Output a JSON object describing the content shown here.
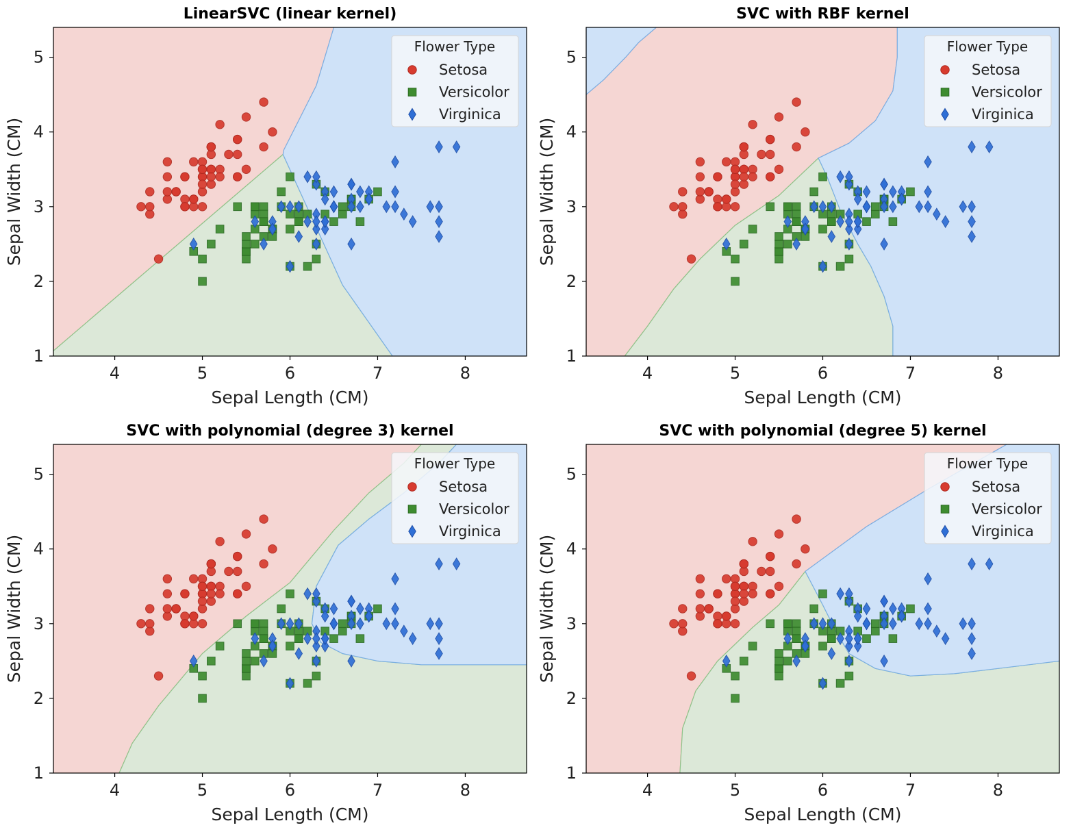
{
  "chart_data": [
    {
      "type": "scatter",
      "title": "LinearSVC (linear kernel)",
      "xlabel": "Sepal Length (CM)",
      "ylabel": "Sepal Width (CM)",
      "xlim": [
        3.3,
        8.7
      ],
      "ylim": [
        1.0,
        5.4
      ],
      "xticks": [
        4,
        5,
        6,
        7,
        8
      ],
      "yticks": [
        1,
        2,
        3,
        4,
        5
      ],
      "legend_title": "Flower Type",
      "legend_position": "top-right",
      "decision_regions": {
        "setosa": [
          [
            3.3,
            1.07
          ],
          [
            5.92,
            3.7
          ],
          [
            5.93,
            3.76
          ],
          [
            6.3,
            4.62
          ],
          [
            6.5,
            5.4
          ],
          [
            3.3,
            5.4
          ]
        ],
        "versicolor": [
          [
            3.3,
            1.0
          ],
          [
            7.17,
            1.0
          ],
          [
            6.6,
            1.95
          ],
          [
            5.92,
            3.7
          ],
          [
            3.3,
            1.07
          ]
        ],
        "virginica": [
          [
            7.17,
            1.0
          ],
          [
            8.7,
            1.0
          ],
          [
            8.7,
            5.4
          ],
          [
            6.5,
            5.4
          ],
          [
            6.3,
            4.62
          ],
          [
            5.93,
            3.76
          ],
          [
            5.92,
            3.7
          ],
          [
            6.6,
            1.95
          ]
        ]
      }
    },
    {
      "type": "scatter",
      "title": "SVC with RBF kernel",
      "xlabel": "Sepal Length (CM)",
      "ylabel": "Sepal Width (CM)",
      "xlim": [
        3.3,
        8.7
      ],
      "ylim": [
        1.0,
        5.4
      ],
      "xticks": [
        4,
        5,
        6,
        7,
        8
      ],
      "yticks": [
        1,
        2,
        3,
        4,
        5
      ],
      "legend_title": "Flower Type",
      "legend_position": "top-right",
      "decision_regions": {
        "virginica_corner": [
          [
            3.3,
            4.5
          ],
          [
            3.5,
            4.7
          ],
          [
            3.75,
            5.0
          ],
          [
            3.9,
            5.2
          ],
          [
            4.1,
            5.4
          ],
          [
            3.3,
            5.4
          ]
        ],
        "setosa": [
          [
            3.3,
            1.0
          ],
          [
            3.74,
            1.0
          ],
          [
            4.0,
            1.4
          ],
          [
            4.3,
            1.9
          ],
          [
            4.6,
            2.3
          ],
          [
            5.0,
            2.75
          ],
          [
            5.5,
            3.15
          ],
          [
            5.95,
            3.65
          ],
          [
            6.3,
            3.85
          ],
          [
            6.6,
            4.15
          ],
          [
            6.8,
            4.55
          ],
          [
            6.85,
            5.0
          ],
          [
            6.85,
            5.4
          ],
          [
            4.1,
            5.4
          ],
          [
            3.9,
            5.2
          ],
          [
            3.75,
            5.0
          ],
          [
            3.5,
            4.7
          ],
          [
            3.3,
            4.5
          ]
        ],
        "versicolor": [
          [
            3.74,
            1.0
          ],
          [
            6.8,
            1.0
          ],
          [
            6.8,
            1.4
          ],
          [
            6.7,
            1.8
          ],
          [
            6.55,
            2.2
          ],
          [
            6.4,
            2.5
          ],
          [
            6.2,
            2.95
          ],
          [
            6.05,
            3.4
          ],
          [
            5.95,
            3.65
          ],
          [
            5.5,
            3.15
          ],
          [
            5.0,
            2.75
          ],
          [
            4.6,
            2.3
          ],
          [
            4.3,
            1.9
          ],
          [
            4.0,
            1.4
          ]
        ],
        "virginica": [
          [
            6.8,
            1.0
          ],
          [
            8.7,
            1.0
          ],
          [
            8.7,
            5.4
          ],
          [
            6.85,
            5.4
          ],
          [
            6.85,
            5.0
          ],
          [
            6.8,
            4.55
          ],
          [
            6.6,
            4.15
          ],
          [
            6.3,
            3.85
          ],
          [
            5.95,
            3.65
          ],
          [
            6.05,
            3.4
          ],
          [
            6.2,
            2.95
          ],
          [
            6.4,
            2.5
          ],
          [
            6.55,
            2.2
          ],
          [
            6.7,
            1.8
          ],
          [
            6.8,
            1.4
          ]
        ]
      }
    },
    {
      "type": "scatter",
      "title": "SVC with polynomial (degree 3) kernel",
      "xlabel": "Sepal Length (CM)",
      "ylabel": "Sepal Width (CM)",
      "xlim": [
        3.3,
        8.7
      ],
      "ylim": [
        1.0,
        5.4
      ],
      "xticks": [
        4,
        5,
        6,
        7,
        8
      ],
      "yticks": [
        1,
        2,
        3,
        4,
        5
      ],
      "legend_title": "Flower Type",
      "legend_position": "top-right",
      "decision_regions": {
        "setosa": [
          [
            3.3,
            1.0
          ],
          [
            4.05,
            1.0
          ],
          [
            4.2,
            1.4
          ],
          [
            4.5,
            1.9
          ],
          [
            5.0,
            2.6
          ],
          [
            5.5,
            3.1
          ],
          [
            6.0,
            3.55
          ],
          [
            6.5,
            4.25
          ],
          [
            6.9,
            4.75
          ],
          [
            7.3,
            5.15
          ],
          [
            7.5,
            5.4
          ],
          [
            3.3,
            5.4
          ]
        ],
        "versicolor": [
          [
            4.05,
            1.0
          ],
          [
            8.7,
            1.0
          ],
          [
            8.7,
            2.45
          ],
          [
            7.5,
            2.45
          ],
          [
            7.0,
            2.5
          ],
          [
            6.6,
            2.6
          ],
          [
            6.35,
            2.75
          ],
          [
            6.25,
            3.0
          ],
          [
            6.3,
            3.5
          ],
          [
            6.55,
            4.05
          ],
          [
            6.9,
            4.4
          ],
          [
            7.3,
            4.75
          ],
          [
            7.7,
            5.15
          ],
          [
            7.9,
            5.4
          ],
          [
            7.5,
            5.4
          ],
          [
            7.3,
            5.15
          ],
          [
            6.9,
            4.75
          ],
          [
            6.5,
            4.25
          ],
          [
            6.0,
            3.55
          ],
          [
            5.5,
            3.1
          ],
          [
            5.0,
            2.6
          ],
          [
            4.5,
            1.9
          ],
          [
            4.2,
            1.4
          ]
        ],
        "virginica": [
          [
            8.7,
            2.45
          ],
          [
            8.7,
            5.4
          ],
          [
            7.9,
            5.4
          ],
          [
            7.7,
            5.15
          ],
          [
            7.3,
            4.75
          ],
          [
            6.9,
            4.4
          ],
          [
            6.55,
            4.05
          ],
          [
            6.3,
            3.5
          ],
          [
            6.25,
            3.0
          ],
          [
            6.35,
            2.75
          ],
          [
            6.6,
            2.6
          ],
          [
            7.0,
            2.5
          ],
          [
            7.5,
            2.45
          ]
        ]
      }
    },
    {
      "type": "scatter",
      "title": "SVC with polynomial (degree 5) kernel",
      "xlabel": "Sepal Length (CM)",
      "ylabel": "Sepal Width (CM)",
      "xlim": [
        3.3,
        8.7
      ],
      "ylim": [
        1.0,
        5.4
      ],
      "xticks": [
        4,
        5,
        6,
        7,
        8
      ],
      "yticks": [
        1,
        2,
        3,
        4,
        5
      ],
      "legend_title": "Flower Type",
      "legend_position": "top-right",
      "decision_regions": {
        "setosa": [
          [
            3.3,
            1.0
          ],
          [
            4.37,
            1.0
          ],
          [
            4.4,
            1.6
          ],
          [
            4.55,
            2.1
          ],
          [
            4.8,
            2.5
          ],
          [
            5.2,
            2.95
          ],
          [
            5.5,
            3.25
          ],
          [
            5.8,
            3.7
          ],
          [
            6.5,
            4.3
          ],
          [
            7.2,
            4.8
          ],
          [
            7.8,
            5.2
          ],
          [
            8.1,
            5.4
          ],
          [
            3.3,
            5.4
          ]
        ],
        "versicolor": [
          [
            4.37,
            1.0
          ],
          [
            8.7,
            1.0
          ],
          [
            8.7,
            2.5
          ],
          [
            8.0,
            2.4
          ],
          [
            7.5,
            2.33
          ],
          [
            7.0,
            2.3
          ],
          [
            6.6,
            2.4
          ],
          [
            6.3,
            2.6
          ],
          [
            6.15,
            2.9
          ],
          [
            6.0,
            3.25
          ],
          [
            5.8,
            3.7
          ],
          [
            5.5,
            3.25
          ],
          [
            5.2,
            2.95
          ],
          [
            4.8,
            2.5
          ],
          [
            4.55,
            2.1
          ],
          [
            4.4,
            1.6
          ]
        ],
        "virginica": [
          [
            8.7,
            2.5
          ],
          [
            8.7,
            5.4
          ],
          [
            8.1,
            5.4
          ],
          [
            7.8,
            5.2
          ],
          [
            7.2,
            4.8
          ],
          [
            6.5,
            4.3
          ],
          [
            5.8,
            3.7
          ],
          [
            6.0,
            3.25
          ],
          [
            6.15,
            2.9
          ],
          [
            6.3,
            2.6
          ],
          [
            6.6,
            2.4
          ],
          [
            7.0,
            2.3
          ],
          [
            7.5,
            2.33
          ],
          [
            8.0,
            2.4
          ]
        ]
      }
    }
  ],
  "points": {
    "setosa": {
      "name": "Setosa",
      "marker": "circle",
      "color": "#d73b2f",
      "x": [
        5.1,
        4.9,
        4.7,
        4.6,
        5.0,
        5.4,
        4.6,
        5.0,
        4.4,
        4.9,
        5.4,
        4.8,
        4.8,
        4.3,
        5.8,
        5.7,
        5.4,
        5.1,
        5.7,
        5.1,
        5.4,
        5.1,
        4.6,
        5.1,
        4.8,
        5.0,
        5.0,
        5.2,
        5.2,
        4.7,
        4.8,
        5.4,
        5.2,
        5.5,
        4.9,
        5.0,
        5.5,
        4.9,
        4.4,
        5.1,
        5.0,
        4.5,
        4.4,
        5.0,
        5.1,
        4.8,
        5.1,
        4.6,
        5.3,
        5.0
      ],
      "y": [
        3.5,
        3.0,
        3.2,
        3.1,
        3.6,
        3.9,
        3.4,
        3.4,
        2.9,
        3.1,
        3.7,
        3.4,
        3.0,
        3.0,
        4.0,
        4.4,
        3.9,
        3.5,
        3.8,
        3.8,
        3.4,
        3.7,
        3.6,
        3.3,
        3.4,
        3.0,
        3.4,
        3.5,
        3.4,
        3.2,
        3.1,
        3.4,
        4.1,
        4.2,
        3.1,
        3.2,
        3.5,
        3.6,
        3.0,
        3.4,
        3.5,
        2.3,
        3.2,
        3.5,
        3.8,
        3.0,
        3.8,
        3.2,
        3.7,
        3.3
      ]
    },
    "versicolor": {
      "name": "Versicolor",
      "marker": "square",
      "color": "#3e8c30",
      "x": [
        7.0,
        6.4,
        6.9,
        5.5,
        6.5,
        5.7,
        6.3,
        4.9,
        6.6,
        5.2,
        5.0,
        5.9,
        6.0,
        6.1,
        5.6,
        6.7,
        5.6,
        5.8,
        6.2,
        5.6,
        5.9,
        6.1,
        6.3,
        6.1,
        6.4,
        6.6,
        6.8,
        6.7,
        6.0,
        5.7,
        5.5,
        5.5,
        5.8,
        6.0,
        5.4,
        6.0,
        6.7,
        6.3,
        5.6,
        5.5,
        5.5,
        6.1,
        5.8,
        5.0,
        5.6,
        5.7,
        5.7,
        6.2,
        5.1,
        5.7
      ],
      "y": [
        3.2,
        3.2,
        3.1,
        2.3,
        2.8,
        2.8,
        3.3,
        2.4,
        2.9,
        2.7,
        2.0,
        3.0,
        2.2,
        2.9,
        2.9,
        3.1,
        3.0,
        2.7,
        2.2,
        2.5,
        3.2,
        2.8,
        2.5,
        2.8,
        2.9,
        3.0,
        2.8,
        3.0,
        2.9,
        2.6,
        2.4,
        2.4,
        2.7,
        2.7,
        3.0,
        3.4,
        3.1,
        2.3,
        3.0,
        2.5,
        2.6,
        3.0,
        2.6,
        2.3,
        2.7,
        3.0,
        2.9,
        2.9,
        2.5,
        2.8
      ]
    },
    "virginica": {
      "name": "Virginica",
      "marker": "diamond",
      "color": "#2f6fd6",
      "x": [
        6.3,
        5.8,
        7.1,
        6.3,
        6.5,
        7.6,
        4.9,
        7.3,
        6.7,
        7.2,
        6.5,
        6.4,
        6.8,
        5.7,
        5.8,
        6.4,
        6.5,
        7.7,
        7.7,
        6.0,
        6.9,
        5.6,
        7.7,
        6.3,
        6.7,
        7.2,
        6.2,
        6.1,
        6.4,
        7.2,
        7.4,
        7.9,
        6.4,
        6.3,
        6.1,
        7.7,
        6.3,
        6.4,
        6.0,
        6.9,
        6.7,
        6.9,
        5.8,
        6.8,
        6.7,
        6.7,
        6.3,
        6.5,
        6.2,
        5.9
      ],
      "y": [
        3.3,
        2.7,
        3.0,
        2.9,
        3.0,
        3.0,
        2.5,
        2.9,
        2.5,
        3.6,
        3.2,
        2.7,
        3.0,
        2.5,
        2.8,
        3.2,
        3.0,
        3.8,
        2.6,
        2.2,
        3.2,
        2.8,
        2.8,
        2.7,
        3.3,
        3.2,
        2.8,
        3.0,
        2.8,
        3.0,
        2.8,
        3.8,
        2.8,
        2.8,
        2.6,
        3.0,
        3.4,
        3.1,
        3.0,
        3.1,
        3.1,
        3.1,
        2.7,
        3.2,
        3.3,
        3.0,
        2.5,
        3.0,
        3.4,
        3.0
      ]
    }
  },
  "colors": {
    "setosa_region": "#f5d6d3",
    "versicolor_region": "#dce8d8",
    "virginica_region": "#cfe2f8",
    "setosa_border": "#e0968c",
    "versicolor_border": "#8ec48a",
    "virginica_border": "#7aaee3"
  }
}
